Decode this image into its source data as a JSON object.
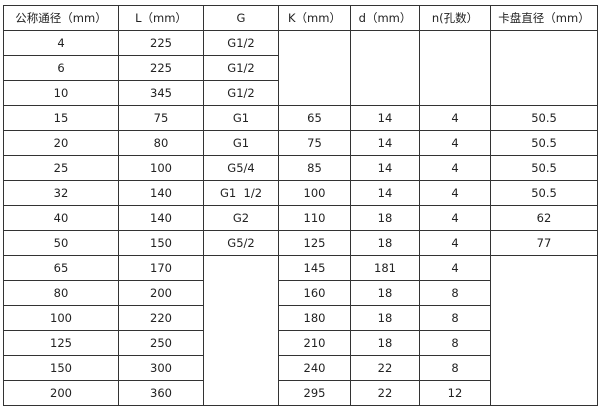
{
  "headers": [
    "公称通径（mm）",
    "L（mm）",
    "G",
    "K（mm）",
    "d（mm）",
    "n(孔数）",
    "卡盘直径（mm）"
  ],
  "rows": [
    [
      "4",
      "225",
      "G1/2"
    ],
    [
      "6",
      "225",
      "G1/2"
    ],
    [
      "10",
      "345",
      "G1/2"
    ],
    [
      "15",
      "75",
      "G1",
      "65",
      "14",
      "4",
      "50.5"
    ],
    [
      "20",
      "80",
      "G1",
      "75",
      "14",
      "4",
      "50.5"
    ],
    [
      "25",
      "100",
      "G5/4",
      "85",
      "14",
      "4",
      "50.5"
    ],
    [
      "32",
      "140",
      "G1  1/2",
      "100",
      "14",
      "4",
      "50.5"
    ],
    [
      "40",
      "140",
      "G2",
      "110",
      "18",
      "4",
      "62"
    ],
    [
      "50",
      "150",
      "G5/2",
      "125",
      "18",
      "4",
      "77"
    ],
    [
      "65",
      "170",
      "",
      "145",
      "181",
      "4"
    ],
    [
      "80",
      "200",
      "",
      "160",
      "18",
      "8"
    ],
    [
      "100",
      "220",
      "",
      "180",
      "18",
      "8"
    ],
    [
      "125",
      "250",
      "",
      "210",
      "18",
      "8"
    ],
    [
      "150",
      "300",
      "",
      "240",
      "22",
      "8"
    ],
    [
      "200",
      "360",
      "",
      "295",
      "22",
      "12"
    ]
  ]
}
